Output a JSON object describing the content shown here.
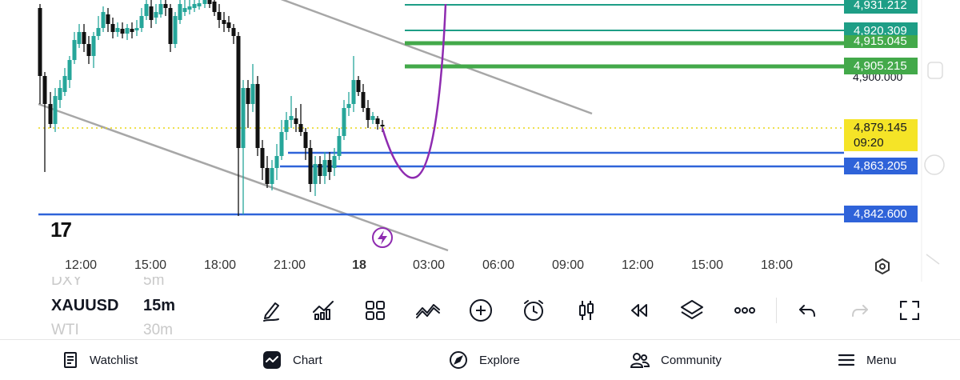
{
  "price_levels": [
    {
      "label": "4,931.212",
      "color": "#1e9e86"
    },
    {
      "label": "4,920.309",
      "color": "#1e9e86"
    },
    {
      "label": "4,915.045",
      "color": "#43a94a"
    },
    {
      "label": "4,905.215",
      "color": "#43a94a"
    },
    {
      "label": "4,900.000",
      "color": "#131722"
    },
    {
      "label": "4,879.145",
      "color": "#f5e427"
    },
    {
      "label": "09:20",
      "color": "#f5e427"
    },
    {
      "label": "4,863.205",
      "color": "#2f63d9"
    },
    {
      "label": "4,842.600",
      "color": "#2f63d9"
    }
  ],
  "time_axis": [
    "12:00",
    "15:00",
    "18:00",
    "21:00",
    "18",
    "03:00",
    "06:00",
    "09:00",
    "12:00",
    "15:00",
    "18:00"
  ],
  "watermark": "17",
  "symbols": {
    "prev": {
      "name": "DXY",
      "interval": "5m"
    },
    "current": {
      "name": "XAUUSD",
      "interval": "15m"
    },
    "next": {
      "name": "WTI",
      "interval": "30m"
    }
  },
  "toolbar_icons": [
    "drawing-pen-icon",
    "indicators-icon",
    "layouts-grid-icon",
    "compare-icon",
    "add-plus-icon",
    "alert-clock-icon",
    "bar-type-icon",
    "replay-icon",
    "layers-icon",
    "more-dots-icon",
    "undo-icon",
    "redo-icon",
    "fullscreen-icon"
  ],
  "nav": [
    {
      "label": "Watchlist",
      "icon": "watchlist-icon"
    },
    {
      "label": "Chart",
      "icon": "chart-icon"
    },
    {
      "label": "Explore",
      "icon": "compass-icon"
    },
    {
      "label": "Community",
      "icon": "community-icon"
    },
    {
      "label": "Menu",
      "icon": "hamburger-icon"
    }
  ],
  "colors": {
    "bull": "#26a69a",
    "bear": "#111111",
    "projection": "#8e2bb0",
    "channel": "#a7a7a7"
  }
}
